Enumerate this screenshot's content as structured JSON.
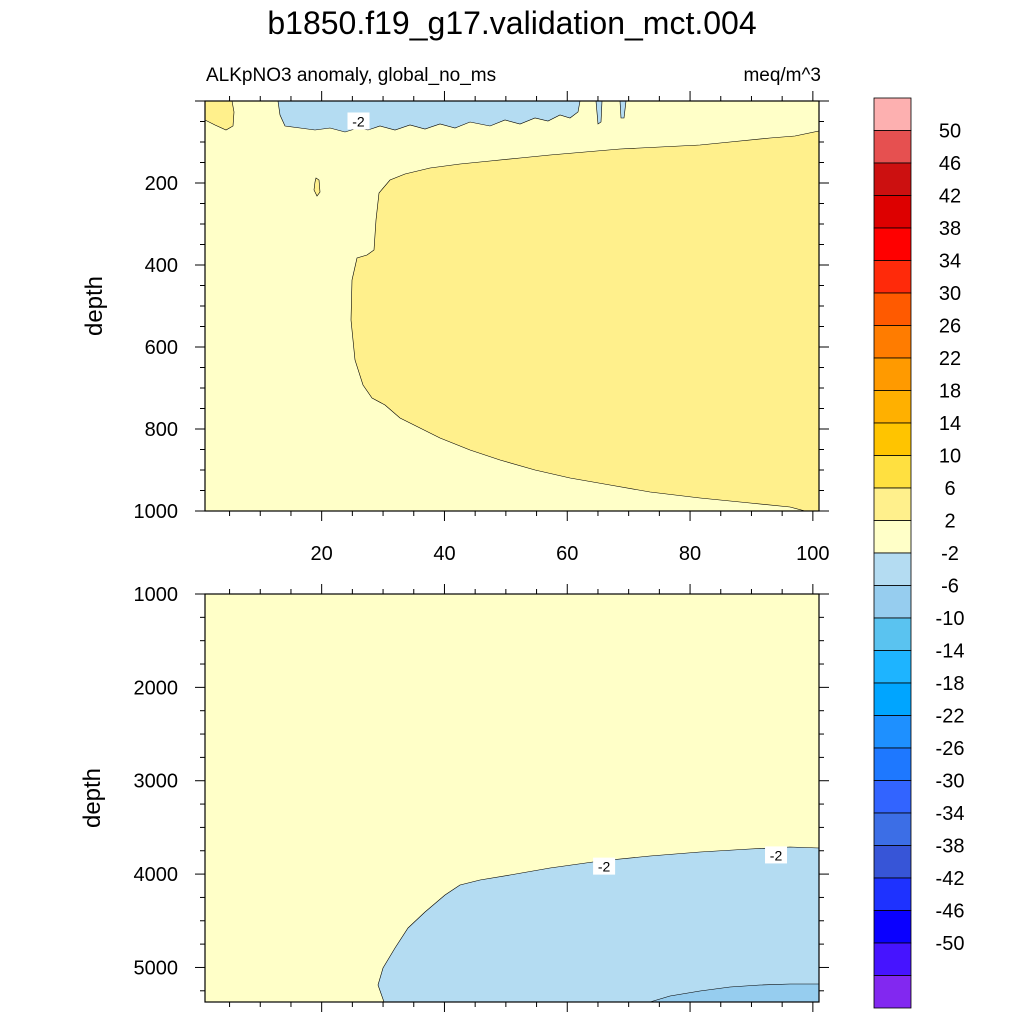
{
  "chart_data": {
    "type": "contour",
    "title": "b1850.f19_g17.validation_mct.004",
    "subtitle_left": "ALKpNO3 anomaly, global_no_ms",
    "subtitle_right": "meq/m^3",
    "colorbar": {
      "labels": [
        "50",
        "46",
        "42",
        "38",
        "34",
        "30",
        "26",
        "22",
        "18",
        "14",
        "10",
        "6",
        "2",
        "-2",
        "-6",
        "-10",
        "-14",
        "-18",
        "-22",
        "-26",
        "-30",
        "-34",
        "-38",
        "-42",
        "-46",
        "-50"
      ],
      "colors": [
        "#fdb0b0",
        "#e65050",
        "#cc1010",
        "#dd0000",
        "#ff0000",
        "#ff2a0a",
        "#ff5a00",
        "#ff7c00",
        "#ff9a00",
        "#ffb000",
        "#ffc400",
        "#ffe040",
        "#fff08c",
        "#ffffc8",
        "#b4dcf2",
        "#96cdef",
        "#5ac3f0",
        "#1eb4ff",
        "#00a5ff",
        "#1e90ff",
        "#1e78ff",
        "#3264ff",
        "#3c6ee6",
        "#3755d7",
        "#1e32ff",
        "#0a00ff",
        "#4614ff",
        "#8228f0"
      ]
    },
    "panels": [
      {
        "name": "upper-panel",
        "ylabel": "depth",
        "xlim": [
          1,
          101
        ],
        "ylim": [
          1000,
          0
        ],
        "xticks": [
          20,
          40,
          60,
          80,
          100
        ],
        "yticks": [
          200,
          400,
          600,
          800,
          1000
        ],
        "contour_labels": [
          {
            "text": "-2",
            "x": 26,
            "y": 50
          }
        ]
      },
      {
        "name": "lower-panel",
        "ylabel": "depth",
        "xlim": [
          1,
          101
        ],
        "ylim": [
          5370,
          1000
        ],
        "xticks": [
          20,
          40,
          60,
          80,
          100
        ],
        "yticks": [
          1000,
          2000,
          3000,
          4000,
          5000
        ],
        "contour_labels": [
          {
            "text": "-2",
            "x": 66,
            "y": 3920
          },
          {
            "text": "-2",
            "x": 94,
            "y": 3800
          }
        ]
      }
    ]
  }
}
